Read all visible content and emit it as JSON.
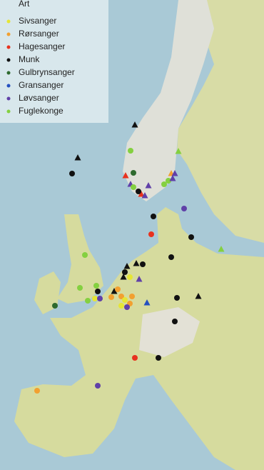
{
  "legend": {
    "title": "Art",
    "items": [
      {
        "name": "Sivsanger",
        "color": "#e6e635"
      },
      {
        "name": "Rørsanger",
        "color": "#f2a030"
      },
      {
        "name": "Hagesanger",
        "color": "#e8321e"
      },
      {
        "name": "Munk",
        "color": "#111111"
      },
      {
        "name": "Gulbrynsanger",
        "color": "#2e6a2e"
      },
      {
        "name": "Gransanger",
        "color": "#2550c0"
      },
      {
        "name": "Løvsanger",
        "color": "#6040a8"
      },
      {
        "name": "Fuglekonge",
        "color": "#84d040"
      }
    ]
  }
}
